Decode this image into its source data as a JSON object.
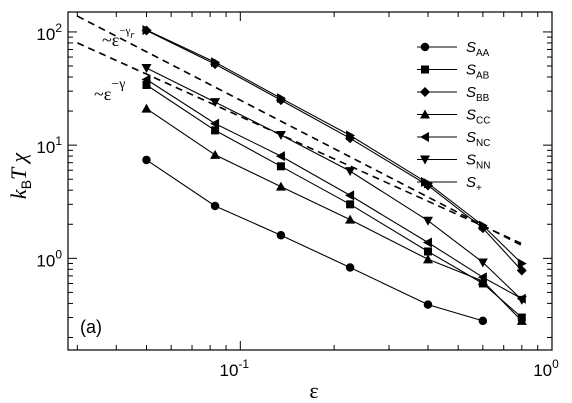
{
  "chart_data": {
    "type": "line",
    "panel_label": "(a)",
    "xlabel": "ε",
    "ylabel_main": "k",
    "ylabel_sub": "B",
    "ylabel_rest": "T χ",
    "x_scale": "log",
    "y_scale": "log",
    "xlim": [
      0.028,
      1.0
    ],
    "ylim": [
      0.155,
      150
    ],
    "x_ticks": [
      {
        "value": 0.1,
        "base": "10",
        "exp": "-1"
      },
      {
        "value": 1,
        "base": "10",
        "exp": "0"
      }
    ],
    "y_ticks": [
      {
        "value": 1,
        "base": "10",
        "exp": "0"
      },
      {
        "value": 10,
        "base": "10",
        "exp": "1"
      },
      {
        "value": 100,
        "base": "10",
        "exp": "2"
      }
    ],
    "x": [
      0.05,
      0.083,
      0.135,
      0.225,
      0.4,
      0.6,
      0.8
    ],
    "series": [
      {
        "label": "S",
        "sub": "AA",
        "marker": "circle",
        "x": [
          0.05,
          0.083,
          0.135,
          0.225,
          0.4,
          0.6
        ],
        "values": [
          7.4,
          2.9,
          1.6,
          0.83,
          0.39,
          0.28
        ]
      },
      {
        "label": "S",
        "sub": "AB",
        "marker": "square",
        "x": [
          0.05,
          0.083,
          0.135,
          0.225,
          0.4,
          0.6,
          0.8
        ],
        "values": [
          34,
          13.5,
          6.5,
          3.0,
          1.15,
          0.6,
          0.3
        ]
      },
      {
        "label": "S",
        "sub": "BB",
        "marker": "diamond",
        "x": [
          0.05,
          0.083,
          0.135,
          0.225,
          0.4,
          0.6,
          0.8
        ],
        "values": [
          103,
          52,
          25,
          11.5,
          4.4,
          1.85,
          0.78
        ]
      },
      {
        "label": "S",
        "sub": "CC",
        "marker": "triangle-up",
        "x": [
          0.05,
          0.083,
          0.135,
          0.225,
          0.4,
          0.6,
          0.8
        ],
        "values": [
          21,
          8.2,
          4.3,
          2.2,
          0.98,
          0.63,
          0.28
        ]
      },
      {
        "label": "S",
        "sub": "NC",
        "marker": "triangle-left",
        "x": [
          0.05,
          0.083,
          0.135,
          0.225,
          0.4,
          0.6,
          0.8
        ],
        "values": [
          38,
          15.5,
          8.0,
          3.6,
          1.38,
          0.68,
          0.44
        ]
      },
      {
        "label": "S",
        "sub": "NN",
        "marker": "triangle-down",
        "x": [
          0.05,
          0.083,
          0.135,
          0.225,
          0.4,
          0.6,
          0.8
        ],
        "values": [
          48,
          24,
          12.3,
          5.9,
          2.15,
          0.92,
          0.43
        ]
      },
      {
        "label": "S",
        "sub": "+",
        "marker": "triangle-right",
        "x": [
          0.05,
          0.083,
          0.135,
          0.225,
          0.4,
          0.6,
          0.8
        ],
        "values": [
          104,
          54,
          26,
          12.2,
          4.6,
          1.95,
          0.9
        ]
      }
    ],
    "reference_lines": [
      {
        "label_base": "~ε",
        "label_exp": "−γ",
        "label_exp_sub": "r",
        "style": "dashed",
        "x": [
          0.03,
          0.8
        ],
        "values": [
          138,
          1.3
        ]
      },
      {
        "label_base": "~ε",
        "label_exp": "−γ",
        "label_exp_sub": "",
        "style": "dashed",
        "x": [
          0.03,
          0.8
        ],
        "values": [
          80,
          1.35
        ]
      }
    ],
    "legend_position": "top-right",
    "grid": false
  }
}
